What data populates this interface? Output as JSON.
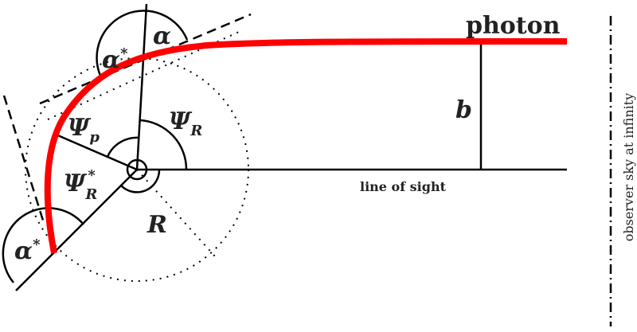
{
  "labels": {
    "photon": "photon",
    "b": "b",
    "line_of_sight": "line of sight",
    "observer": "observer sky at infinity",
    "alpha_star_top": {
      "symbol": "α",
      "sup": "*"
    },
    "alpha": "α",
    "psi_p": {
      "symbol": "Ψ",
      "sub": "p"
    },
    "psi_r": {
      "symbol": "Ψ",
      "sub": "R"
    },
    "psi_r_star": {
      "symbol": "Ψ",
      "sub": "R",
      "sup": "*"
    },
    "r": "R",
    "alpha_star_bottom": {
      "symbol": "α",
      "sup": "*"
    }
  }
}
